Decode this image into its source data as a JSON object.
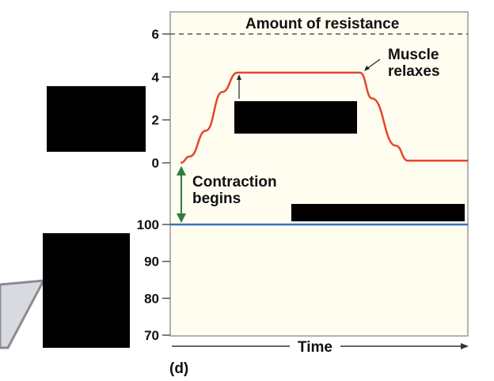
{
  "chart_data": [
    {
      "type": "line",
      "xlabel": "Time",
      "panel_label": "(d)",
      "ylim": [
        0,
        6
      ],
      "yticks": [
        "0",
        "2",
        "4",
        "6"
      ],
      "reference_line": {
        "label": "Amount of resistance",
        "y": 6,
        "style": "dashed",
        "color": "#555555"
      },
      "series": [
        {
          "color": "#e8442c",
          "x": [
            3.5,
            6.6,
            12,
            17.5,
            22.6,
            63.8,
            67.8,
            75.8,
            79.8,
            100
          ],
          "y": [
            0,
            0.3,
            1.5,
            3.3,
            4.2,
            4.2,
            3.0,
            0.8,
            0.1,
            0.1
          ]
        }
      ],
      "annotations": [
        {
          "text": "Muscle relaxes",
          "arrow": true
        },
        {
          "text": "Contraction begins",
          "arrow": true,
          "color": "#2e7d3e"
        }
      ]
    },
    {
      "type": "line",
      "ylim": [
        70,
        100
      ],
      "yticks": [
        "70",
        "80",
        "90",
        "100"
      ],
      "series": [
        {
          "color": "#3a6fc4",
          "x": [
            0,
            100
          ],
          "y": [
            100,
            100
          ]
        }
      ]
    }
  ],
  "colors": {
    "panel_bg": "#fefdf0",
    "redaction": "#000000"
  }
}
